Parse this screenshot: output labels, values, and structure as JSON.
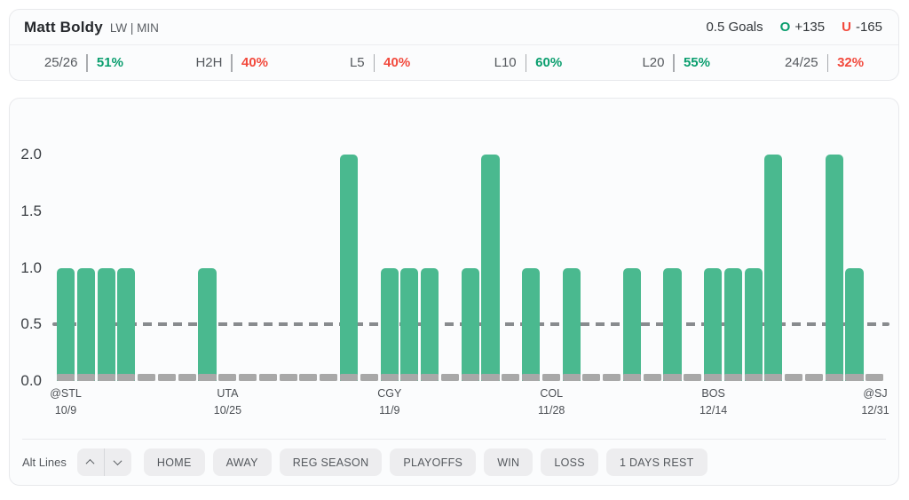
{
  "header": {
    "player": "Matt Boldy",
    "position": "LW | MIN",
    "line": "0.5 Goals",
    "over": {
      "label": "O",
      "odds": "+135"
    },
    "under": {
      "label": "U",
      "odds": "-165"
    }
  },
  "stats": [
    {
      "label": "25/26",
      "value": "51%",
      "status": "positive"
    },
    {
      "label": "H2H",
      "value": "40%",
      "status": "negative"
    },
    {
      "label": "L5",
      "value": "40%",
      "status": "negative"
    },
    {
      "label": "L10",
      "value": "60%",
      "status": "positive"
    },
    {
      "label": "L20",
      "value": "55%",
      "status": "positive"
    },
    {
      "label": "24/25",
      "value": "32%",
      "status": "negative"
    }
  ],
  "colors": {
    "positive": "#0a9e6e",
    "negative": "#f2493c",
    "bar": "#4ab98f",
    "zero_stub": "#a8a8a8",
    "reference_line": "#888b8e"
  },
  "chart_data": {
    "type": "bar",
    "title": "Goals by game vs 0.5 line",
    "ylabel": "",
    "xlabel": "",
    "ylim": [
      0,
      2.5
    ],
    "yticks": [
      "0.0",
      "0.5",
      "1.0",
      "1.5",
      "2.0"
    ],
    "reference_line": 0.5,
    "grid": false,
    "values": [
      1,
      1,
      1,
      1,
      0,
      0,
      0,
      1,
      0,
      0,
      0,
      0,
      0,
      0,
      2,
      0,
      1,
      1,
      1,
      0,
      1,
      2,
      0,
      1,
      0,
      1,
      0,
      0,
      1,
      0,
      1,
      0,
      1,
      1,
      1,
      2,
      0,
      0,
      2,
      1,
      0
    ],
    "x_tick_labels": [
      {
        "index": 0,
        "opponent": "@STL",
        "date": "10/9"
      },
      {
        "index": 8,
        "opponent": "UTA",
        "date": "10/25"
      },
      {
        "index": 16,
        "opponent": "CGY",
        "date": "11/9"
      },
      {
        "index": 24,
        "opponent": "COL",
        "date": "11/28"
      },
      {
        "index": 32,
        "opponent": "BOS",
        "date": "12/14"
      },
      {
        "index": 40,
        "opponent": "@SJ",
        "date": "12/31"
      }
    ]
  },
  "controls": {
    "alt_lines_label": "Alt Lines",
    "filters": [
      "HOME",
      "AWAY",
      "REG SEASON",
      "PLAYOFFS",
      "WIN",
      "LOSS",
      "1 DAYS REST"
    ]
  }
}
